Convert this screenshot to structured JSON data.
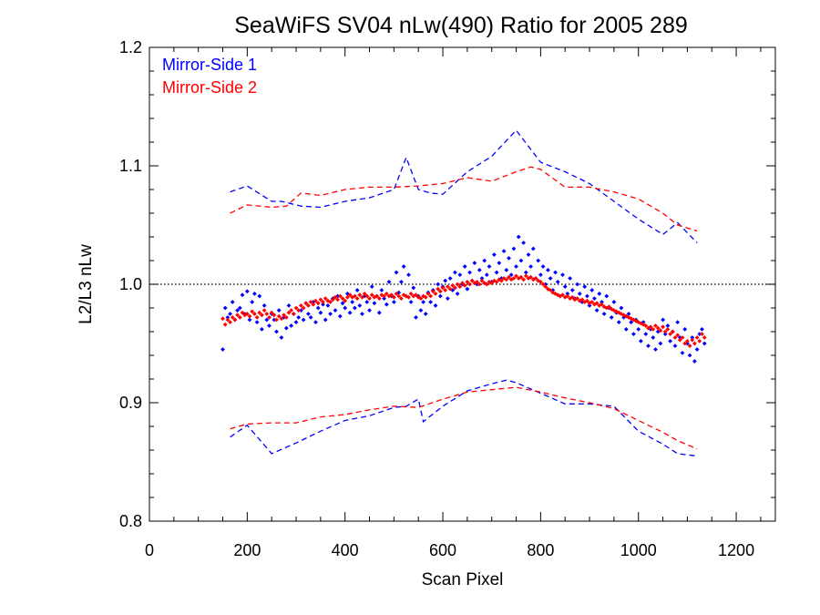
{
  "chart_data": {
    "type": "scatter",
    "title": "SeaWiFS SV04 nLw(490) Ratio for 2005 289",
    "xlabel": "Scan Pixel",
    "ylabel": "L2/L3 nLw",
    "xlim": [
      0,
      1280
    ],
    "ylim": [
      0.8,
      1.2
    ],
    "x_ticks": [
      "0",
      "200",
      "400",
      "600",
      "800",
      "1000",
      "1200"
    ],
    "y_ticks": [
      "0.8",
      "0.9",
      "1.0",
      "1.1",
      "1.2"
    ],
    "x_tick_values": [
      0,
      200,
      400,
      600,
      800,
      1000,
      1200
    ],
    "y_tick_values": [
      0.8,
      0.9,
      1.0,
      1.1,
      1.2
    ],
    "x_minor_step": 50,
    "y_minor_step": 0.02,
    "reference_line": {
      "y": 1.0,
      "style": "dotted",
      "color": "#000000"
    },
    "legend_position": "top-left",
    "series": [
      {
        "name": "Mirror-Side 1",
        "color": "#0000ff",
        "kind": "scatter",
        "x": [
          150,
          155,
          160,
          165,
          170,
          175,
          180,
          185,
          190,
          195,
          200,
          205,
          210,
          215,
          220,
          225,
          230,
          235,
          240,
          245,
          250,
          255,
          260,
          265,
          270,
          275,
          280,
          285,
          290,
          295,
          300,
          305,
          310,
          315,
          320,
          325,
          330,
          335,
          340,
          345,
          350,
          355,
          360,
          365,
          370,
          375,
          380,
          385,
          390,
          395,
          400,
          405,
          410,
          415,
          420,
          425,
          430,
          435,
          440,
          445,
          450,
          455,
          460,
          465,
          470,
          475,
          480,
          485,
          490,
          495,
          500,
          505,
          510,
          515,
          520,
          525,
          530,
          535,
          540,
          545,
          550,
          555,
          560,
          565,
          570,
          575,
          580,
          585,
          590,
          595,
          600,
          605,
          610,
          615,
          620,
          625,
          630,
          635,
          640,
          645,
          650,
          655,
          660,
          665,
          670,
          675,
          680,
          685,
          690,
          695,
          700,
          705,
          710,
          715,
          720,
          725,
          730,
          735,
          740,
          745,
          750,
          755,
          760,
          765,
          770,
          775,
          780,
          785,
          790,
          795,
          800,
          805,
          810,
          815,
          820,
          825,
          830,
          835,
          840,
          845,
          850,
          855,
          860,
          865,
          870,
          875,
          880,
          885,
          890,
          895,
          900,
          905,
          910,
          915,
          920,
          925,
          930,
          935,
          940,
          945,
          950,
          955,
          960,
          965,
          970,
          975,
          980,
          985,
          990,
          995,
          1000,
          1005,
          1010,
          1015,
          1020,
          1025,
          1030,
          1035,
          1040,
          1045,
          1050,
          1055,
          1060,
          1065,
          1070,
          1075,
          1080,
          1085,
          1090,
          1095,
          1100,
          1105,
          1110,
          1115,
          1120,
          1125,
          1130,
          1135
        ],
        "y": [
          0.945,
          0.98,
          0.972,
          0.975,
          0.985,
          0.97,
          0.978,
          0.98,
          0.991,
          0.975,
          0.994,
          0.97,
          0.985,
          0.992,
          0.968,
          0.99,
          0.962,
          0.982,
          0.97,
          0.965,
          0.975,
          0.97,
          0.96,
          0.978,
          0.955,
          0.972,
          0.963,
          0.982,
          0.965,
          0.975,
          0.968,
          0.972,
          0.978,
          0.97,
          0.984,
          0.975,
          0.972,
          0.985,
          0.968,
          0.98,
          0.976,
          0.983,
          0.97,
          0.982,
          0.975,
          0.988,
          0.978,
          0.99,
          0.973,
          0.984,
          0.98,
          0.992,
          0.976,
          0.985,
          0.98,
          0.995,
          0.982,
          0.975,
          0.99,
          0.985,
          0.978,
          0.998,
          0.984,
          0.99,
          0.976,
          0.995,
          0.988,
          0.983,
          1.002,
          0.99,
          0.985,
          1.01,
          0.993,
          1.002,
          1.015,
          0.99,
          1.008,
          0.985,
          0.997,
          0.972,
          0.99,
          0.978,
          0.985,
          0.975,
          0.993,
          0.985,
          0.995,
          0.982,
          1.0,
          0.99,
          0.998,
          1.003,
          0.988,
          1.005,
          0.995,
          1.01,
          0.992,
          1.008,
          1.0,
          1.015,
          0.996,
          1.01,
          1.003,
          1.018,
          1.0,
          1.012,
          1.005,
          1.02,
          1.008,
          1.015,
          1.002,
          1.025,
          1.01,
          1.018,
          1.005,
          1.028,
          1.012,
          1.022,
          1.008,
          1.03,
          1.015,
          1.04,
          1.02,
          1.035,
          1.01,
          1.025,
          1.015,
          1.03,
          1.005,
          1.02,
          1.008,
          1.015,
          1.0,
          1.012,
          1.005,
          0.995,
          1.01,
          1.002,
          0.99,
          1.008,
          0.998,
          0.992,
          1.005,
          0.995,
          0.988,
          1.0,
          0.992,
          0.985,
          0.998,
          0.99,
          0.982,
          0.995,
          0.988,
          0.978,
          0.992,
          0.985,
          0.975,
          0.99,
          0.98,
          0.972,
          0.985,
          0.976,
          0.968,
          0.98,
          0.972,
          0.962,
          0.975,
          0.968,
          0.958,
          0.97,
          0.962,
          0.952,
          0.968,
          0.958,
          0.948,
          0.962,
          0.955,
          0.945,
          0.96,
          0.95,
          0.97,
          0.958,
          0.965,
          0.952,
          0.96,
          0.948,
          0.968,
          0.955,
          0.942,
          0.962,
          0.95,
          0.94,
          0.955,
          0.935,
          0.945,
          0.958,
          0.962,
          0.95
        ]
      },
      {
        "name": "Mirror-Side 2",
        "color": "#ff0000",
        "kind": "scatter",
        "x": [
          150,
          155,
          160,
          165,
          170,
          175,
          180,
          185,
          190,
          195,
          200,
          205,
          210,
          215,
          220,
          225,
          230,
          235,
          240,
          245,
          250,
          255,
          260,
          265,
          270,
          275,
          280,
          285,
          290,
          295,
          300,
          305,
          310,
          315,
          320,
          325,
          330,
          335,
          340,
          345,
          350,
          355,
          360,
          365,
          370,
          375,
          380,
          385,
          390,
          395,
          400,
          405,
          410,
          415,
          420,
          425,
          430,
          435,
          440,
          445,
          450,
          455,
          460,
          465,
          470,
          475,
          480,
          485,
          490,
          495,
          500,
          505,
          510,
          515,
          520,
          525,
          530,
          535,
          540,
          545,
          550,
          555,
          560,
          565,
          570,
          575,
          580,
          585,
          590,
          595,
          600,
          605,
          610,
          615,
          620,
          625,
          630,
          635,
          640,
          645,
          650,
          655,
          660,
          665,
          670,
          675,
          680,
          685,
          690,
          695,
          700,
          705,
          710,
          715,
          720,
          725,
          730,
          735,
          740,
          745,
          750,
          755,
          760,
          765,
          770,
          775,
          780,
          785,
          790,
          795,
          800,
          805,
          810,
          815,
          820,
          825,
          830,
          835,
          840,
          845,
          850,
          855,
          860,
          865,
          870,
          875,
          880,
          885,
          890,
          895,
          900,
          905,
          910,
          915,
          920,
          925,
          930,
          935,
          940,
          945,
          950,
          955,
          960,
          965,
          970,
          975,
          980,
          985,
          990,
          995,
          1000,
          1005,
          1010,
          1015,
          1020,
          1025,
          1030,
          1035,
          1040,
          1045,
          1050,
          1055,
          1060,
          1065,
          1070,
          1075,
          1080,
          1085,
          1090,
          1095,
          1100,
          1105,
          1110,
          1115,
          1120,
          1125,
          1130,
          1135
        ],
        "y": [
          0.971,
          0.966,
          0.97,
          0.968,
          0.972,
          0.97,
          0.974,
          0.972,
          0.976,
          0.974,
          0.975,
          0.973,
          0.977,
          0.975,
          0.972,
          0.976,
          0.974,
          0.978,
          0.975,
          0.972,
          0.976,
          0.974,
          0.97,
          0.973,
          0.971,
          0.974,
          0.972,
          0.976,
          0.978,
          0.975,
          0.98,
          0.978,
          0.982,
          0.98,
          0.984,
          0.982,
          0.985,
          0.983,
          0.986,
          0.984,
          0.987,
          0.985,
          0.988,
          0.986,
          0.985,
          0.987,
          0.989,
          0.987,
          0.99,
          0.988,
          0.986,
          0.989,
          0.991,
          0.989,
          0.99,
          0.988,
          0.991,
          0.989,
          0.992,
          0.99,
          0.988,
          0.991,
          0.989,
          0.99,
          0.988,
          0.991,
          0.99,
          0.992,
          0.99,
          0.991,
          0.989,
          0.992,
          0.99,
          0.988,
          0.991,
          0.99,
          0.989,
          0.992,
          0.99,
          0.991,
          0.989,
          0.988,
          0.99,
          0.989,
          0.992,
          0.99,
          0.994,
          0.992,
          0.996,
          0.994,
          0.997,
          0.995,
          0.998,
          0.996,
          0.999,
          0.997,
          1.0,
          0.998,
          1.001,
          0.999,
          1.002,
          1.0,
          1.003,
          1.001,
          1.002,
          1.0,
          1.003,
          1.001,
          1.0,
          1.002,
          1.001,
          1.003,
          1.002,
          1.004,
          1.003,
          1.005,
          1.004,
          1.006,
          1.004,
          1.005,
          1.007,
          1.005,
          1.006,
          1.004,
          1.007,
          1.005,
          1.006,
          1.004,
          1.005,
          1.003,
          1.002,
          1.0,
          0.998,
          0.996,
          0.995,
          0.993,
          0.992,
          0.991,
          0.99,
          0.991,
          0.989,
          0.99,
          0.988,
          0.989,
          0.987,
          0.988,
          0.986,
          0.987,
          0.985,
          0.986,
          0.984,
          0.985,
          0.983,
          0.984,
          0.982,
          0.983,
          0.981,
          0.98,
          0.981,
          0.979,
          0.978,
          0.977,
          0.976,
          0.975,
          0.974,
          0.973,
          0.972,
          0.971,
          0.97,
          0.969,
          0.968,
          0.967,
          0.966,
          0.965,
          0.963,
          0.964,
          0.962,
          0.965,
          0.963,
          0.961,
          0.964,
          0.96,
          0.962,
          0.958,
          0.96,
          0.955,
          0.957,
          0.953,
          0.955,
          0.95,
          0.952,
          0.948,
          0.953,
          0.95,
          0.955,
          0.952,
          0.958,
          0.955
        ]
      },
      {
        "name": "",
        "color": "#0000ff",
        "kind": "dashed-line",
        "x": [
          165,
          200,
          250,
          270,
          310,
          350,
          400,
          450,
          500,
          525,
          550,
          575,
          600,
          650,
          700,
          750,
          800,
          850,
          900,
          950,
          1000,
          1050,
          1080,
          1120
        ],
        "y": [
          1.078,
          1.083,
          1.07,
          1.07,
          1.066,
          1.065,
          1.07,
          1.073,
          1.08,
          1.107,
          1.08,
          1.077,
          1.076,
          1.095,
          1.108,
          1.13,
          1.103,
          1.095,
          1.085,
          1.07,
          1.055,
          1.042,
          1.052,
          1.035
        ]
      },
      {
        "name": "",
        "color": "#ff0000",
        "kind": "dashed-line",
        "x": [
          165,
          200,
          250,
          280,
          310,
          350,
          400,
          450,
          500,
          550,
          600,
          650,
          700,
          750,
          780,
          800,
          850,
          900,
          950,
          1000,
          1050,
          1080,
          1120
        ],
        "y": [
          1.06,
          1.067,
          1.065,
          1.066,
          1.077,
          1.075,
          1.08,
          1.082,
          1.082,
          1.083,
          1.085,
          1.09,
          1.087,
          1.095,
          1.099,
          1.097,
          1.082,
          1.082,
          1.078,
          1.072,
          1.06,
          1.05,
          1.045
        ]
      },
      {
        "name": "",
        "color": "#0000ff",
        "kind": "dashed-line",
        "x": [
          165,
          200,
          250,
          300,
          350,
          400,
          450,
          500,
          525,
          550,
          560,
          600,
          650,
          700,
          730,
          750,
          800,
          850,
          900,
          950,
          1000,
          1050,
          1080,
          1120
        ],
        "y": [
          0.871,
          0.881,
          0.857,
          0.866,
          0.876,
          0.885,
          0.889,
          0.896,
          0.897,
          0.903,
          0.884,
          0.897,
          0.91,
          0.916,
          0.919,
          0.917,
          0.908,
          0.899,
          0.899,
          0.897,
          0.876,
          0.865,
          0.857,
          0.855
        ]
      },
      {
        "name": "",
        "color": "#ff0000",
        "kind": "dashed-line",
        "x": [
          165,
          200,
          250,
          300,
          350,
          400,
          450,
          500,
          550,
          600,
          650,
          700,
          750,
          800,
          850,
          900,
          950,
          1000,
          1050,
          1080,
          1120
        ],
        "y": [
          0.878,
          0.882,
          0.883,
          0.883,
          0.888,
          0.89,
          0.894,
          0.897,
          0.896,
          0.903,
          0.909,
          0.911,
          0.913,
          0.909,
          0.904,
          0.9,
          0.895,
          0.885,
          0.875,
          0.868,
          0.861
        ]
      }
    ]
  }
}
